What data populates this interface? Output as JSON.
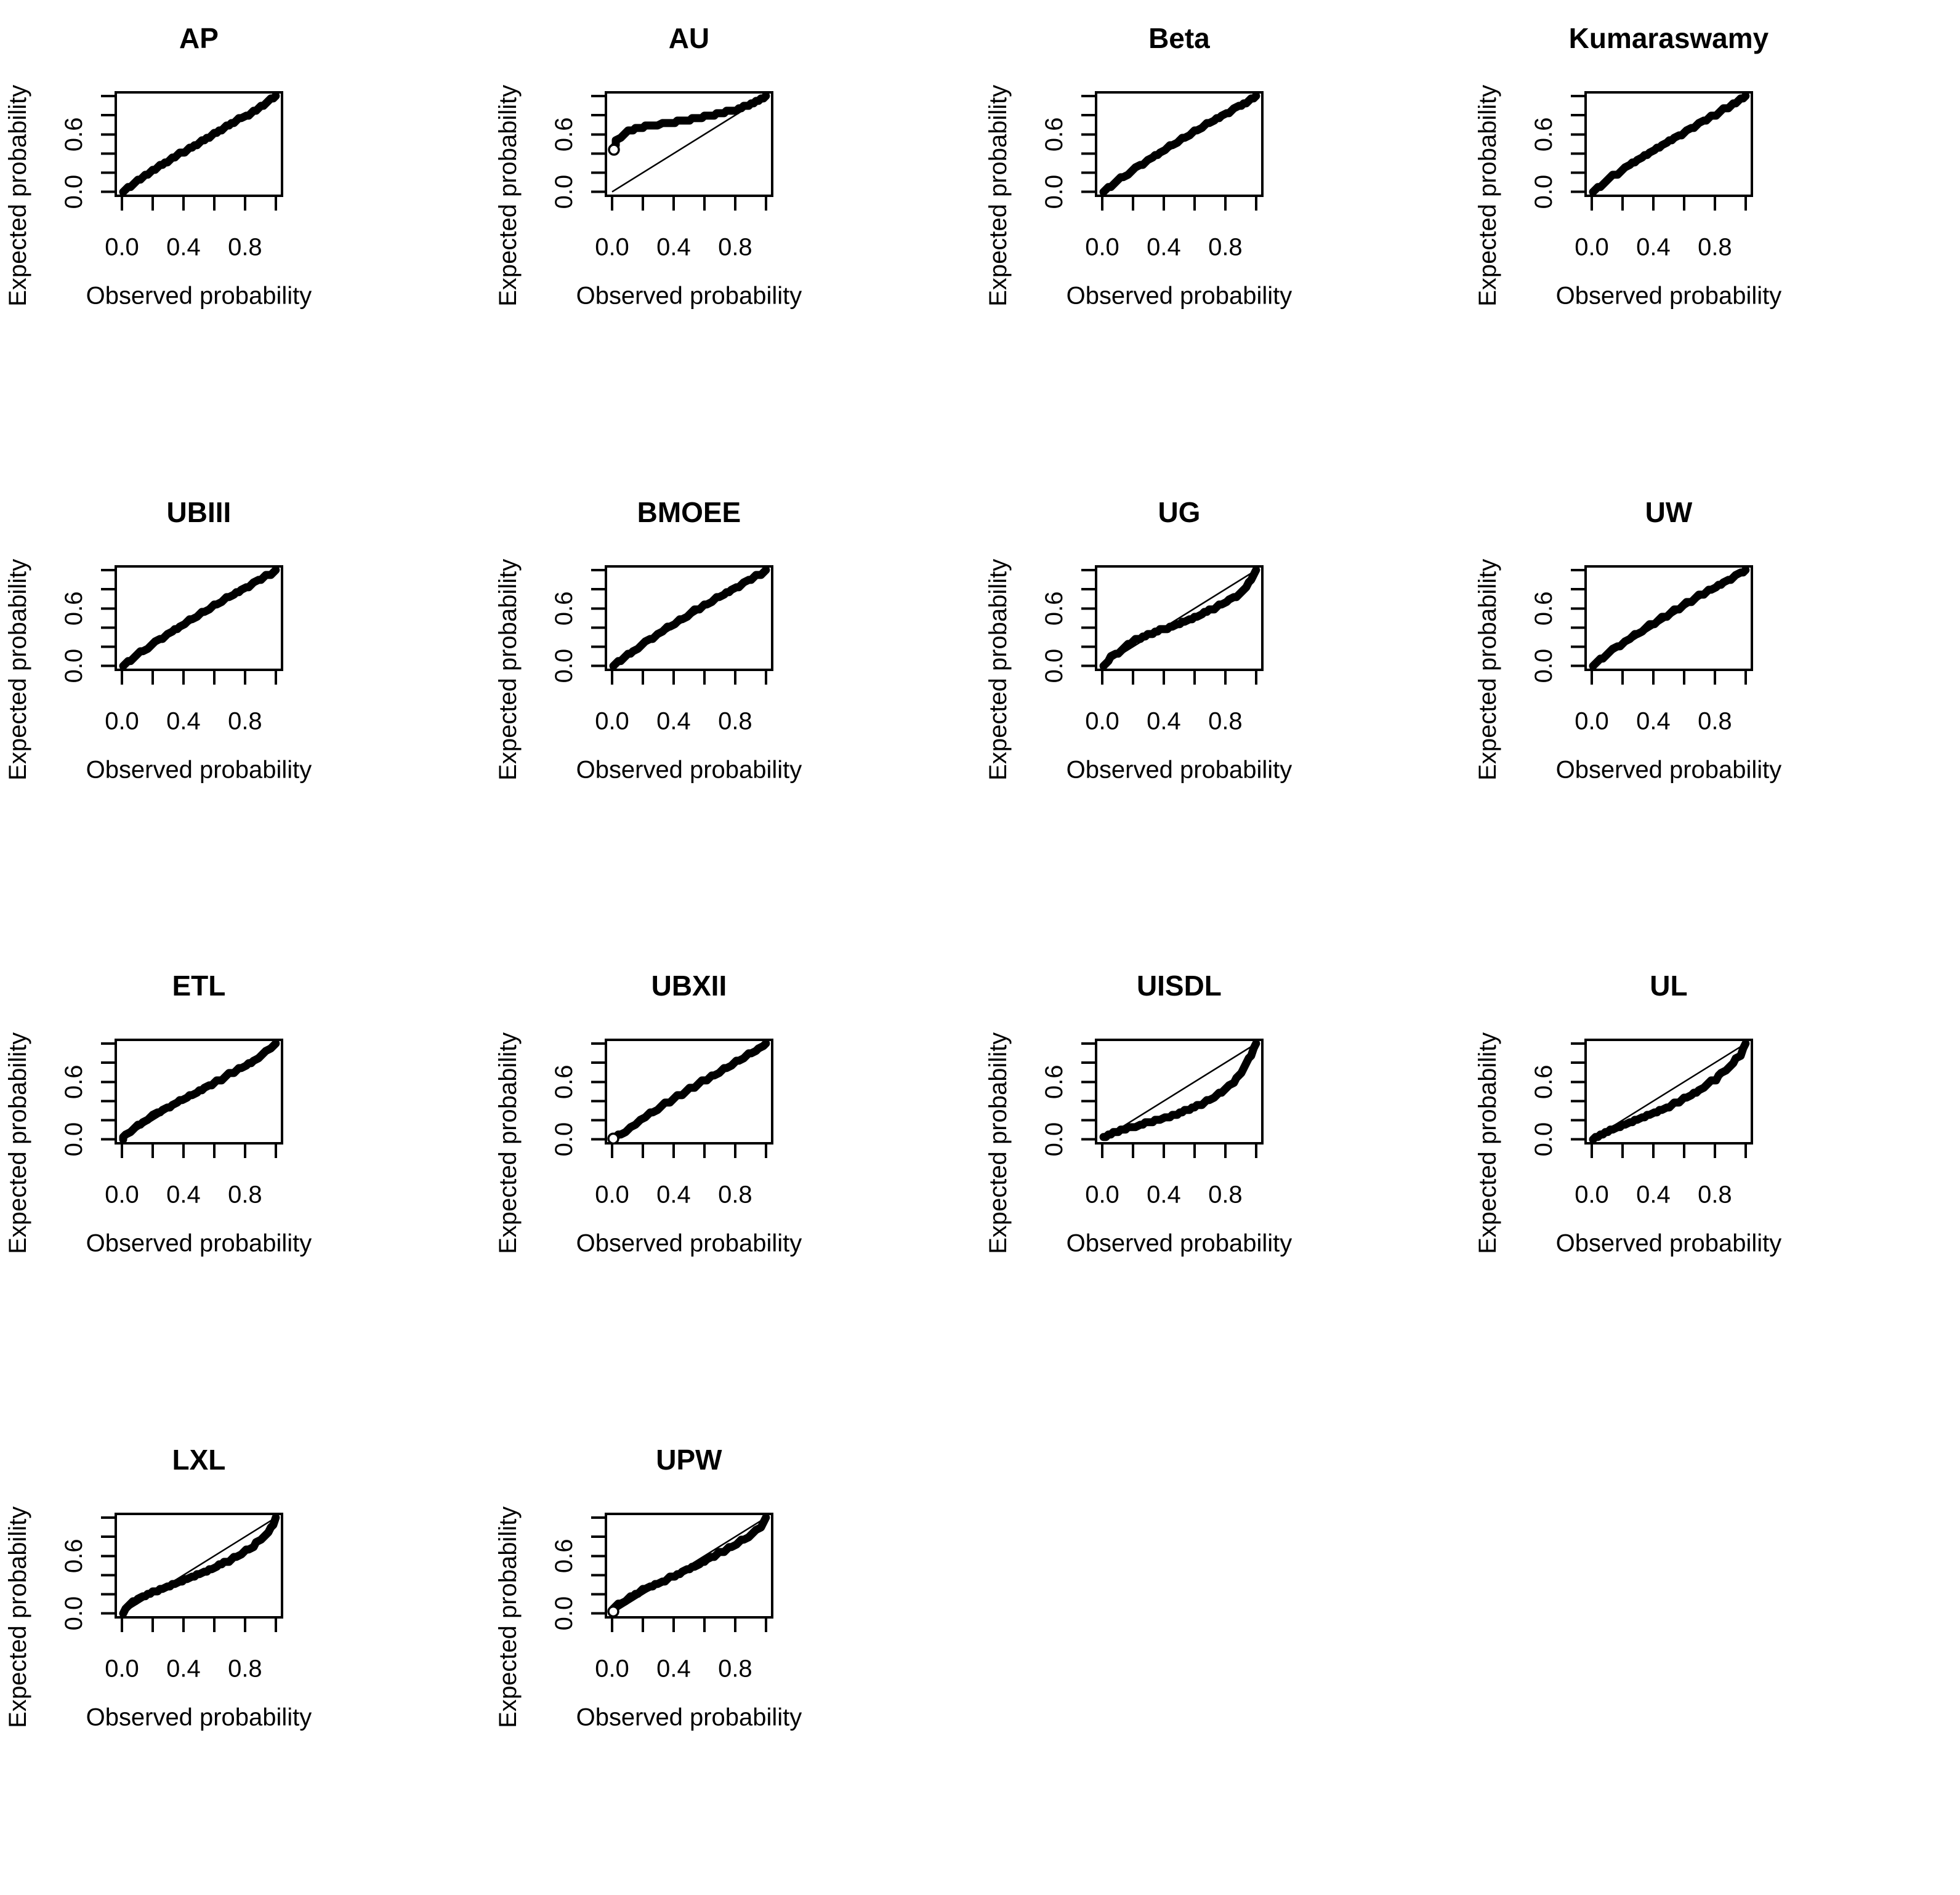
{
  "figure": {
    "kind": "pp-plot-grid",
    "description": "Grid of P-P plots comparing observed vs expected probabilities for fitted distributions",
    "rows": 4,
    "cols": 4,
    "num_plots": 14
  },
  "colors": {
    "foreground": "#000000",
    "background": "#ffffff"
  },
  "axes": {
    "xlabel": "Observed probability",
    "ylabel": "Expected probability",
    "xlim": [
      0,
      1
    ],
    "ylim": [
      0,
      1
    ],
    "x_tick_positions": [
      0,
      0.2,
      0.4,
      0.6,
      0.8,
      1.0
    ],
    "y_tick_positions": [
      0,
      0.2,
      0.4,
      0.6,
      0.8,
      1.0
    ],
    "x_tick_labels": [
      {
        "value": 0.0,
        "label": "0.0"
      },
      {
        "value": 0.4,
        "label": "0.4"
      },
      {
        "value": 0.8,
        "label": "0.8"
      }
    ],
    "y_tick_labels": [
      {
        "value": 0.0,
        "label": "0.0"
      },
      {
        "value": 0.6,
        "label": "0.6"
      }
    ]
  },
  "chart_data": [
    {
      "type": "scatter",
      "title": "AP",
      "reference_line": [
        [
          0,
          0
        ],
        [
          1,
          1
        ]
      ],
      "points": [
        [
          0,
          0.005
        ],
        [
          0.05,
          0.06
        ],
        [
          0.1,
          0.115
        ],
        [
          0.15,
          0.17
        ],
        [
          0.2,
          0.22
        ],
        [
          0.25,
          0.27
        ],
        [
          0.3,
          0.32
        ],
        [
          0.35,
          0.37
        ],
        [
          0.4,
          0.42
        ],
        [
          0.45,
          0.465
        ],
        [
          0.5,
          0.515
        ],
        [
          0.55,
          0.56
        ],
        [
          0.6,
          0.605
        ],
        [
          0.65,
          0.65
        ],
        [
          0.7,
          0.7
        ],
        [
          0.75,
          0.745
        ],
        [
          0.8,
          0.79
        ],
        [
          0.85,
          0.84
        ],
        [
          0.9,
          0.89
        ],
        [
          0.95,
          0.945
        ],
        [
          1,
          1
        ]
      ]
    },
    {
      "type": "scatter",
      "title": "AU",
      "reference_line": [
        [
          0,
          0
        ],
        [
          1,
          1
        ]
      ],
      "open_point": [
        0.012,
        0.44
      ],
      "points": [
        [
          0,
          0.43
        ],
        [
          0.01,
          0.46
        ],
        [
          0.02,
          0.5
        ],
        [
          0.03,
          0.53
        ],
        [
          0.05,
          0.57
        ],
        [
          0.07,
          0.6
        ],
        [
          0.1,
          0.63
        ],
        [
          0.15,
          0.655
        ],
        [
          0.2,
          0.675
        ],
        [
          0.3,
          0.705
        ],
        [
          0.4,
          0.73
        ],
        [
          0.5,
          0.755
        ],
        [
          0.6,
          0.785
        ],
        [
          0.7,
          0.82
        ],
        [
          0.8,
          0.86
        ],
        [
          0.9,
          0.915
        ],
        [
          0.95,
          0.95
        ],
        [
          1,
          1
        ]
      ]
    },
    {
      "type": "scatter",
      "title": "Beta",
      "reference_line": [
        [
          0,
          0
        ],
        [
          1,
          1
        ]
      ],
      "points": [
        [
          0,
          0.005
        ],
        [
          0.05,
          0.06
        ],
        [
          0.1,
          0.12
        ],
        [
          0.2,
          0.23
        ],
        [
          0.3,
          0.33
        ],
        [
          0.4,
          0.435
        ],
        [
          0.5,
          0.535
        ],
        [
          0.6,
          0.63
        ],
        [
          0.7,
          0.725
        ],
        [
          0.8,
          0.815
        ],
        [
          0.9,
          0.905
        ],
        [
          0.95,
          0.95
        ],
        [
          1,
          1
        ]
      ]
    },
    {
      "type": "scatter",
      "title": "Kumaraswamy",
      "reference_line": [
        [
          0,
          0
        ],
        [
          1,
          1
        ]
      ],
      "points": [
        [
          0,
          0.005
        ],
        [
          0.05,
          0.06
        ],
        [
          0.1,
          0.125
        ],
        [
          0.2,
          0.235
        ],
        [
          0.3,
          0.34
        ],
        [
          0.4,
          0.435
        ],
        [
          0.5,
          0.53
        ],
        [
          0.6,
          0.62
        ],
        [
          0.7,
          0.715
        ],
        [
          0.8,
          0.805
        ],
        [
          0.9,
          0.9
        ],
        [
          0.95,
          0.95
        ],
        [
          1,
          1
        ]
      ]
    },
    {
      "type": "scatter",
      "title": "UBIII",
      "reference_line": [
        [
          0,
          0
        ],
        [
          1,
          1
        ]
      ],
      "points": [
        [
          0,
          0.005
        ],
        [
          0.05,
          0.06
        ],
        [
          0.1,
          0.12
        ],
        [
          0.2,
          0.23
        ],
        [
          0.3,
          0.335
        ],
        [
          0.4,
          0.435
        ],
        [
          0.5,
          0.535
        ],
        [
          0.6,
          0.63
        ],
        [
          0.7,
          0.725
        ],
        [
          0.8,
          0.815
        ],
        [
          0.9,
          0.905
        ],
        [
          1,
          1
        ]
      ]
    },
    {
      "type": "scatter",
      "title": "BMOEE",
      "reference_line": [
        [
          0,
          0
        ],
        [
          1,
          1
        ]
      ],
      "points": [
        [
          0,
          0.005
        ],
        [
          0.05,
          0.055
        ],
        [
          0.1,
          0.115
        ],
        [
          0.2,
          0.225
        ],
        [
          0.3,
          0.335
        ],
        [
          0.4,
          0.44
        ],
        [
          0.5,
          0.54
        ],
        [
          0.6,
          0.635
        ],
        [
          0.7,
          0.725
        ],
        [
          0.8,
          0.815
        ],
        [
          0.9,
          0.905
        ],
        [
          1,
          1
        ]
      ]
    },
    {
      "type": "scatter",
      "title": "UG",
      "reference_line": [
        [
          0,
          0
        ],
        [
          1,
          1
        ]
      ],
      "points": [
        [
          0,
          0.01
        ],
        [
          0.04,
          0.06
        ],
        [
          0.08,
          0.12
        ],
        [
          0.13,
          0.18
        ],
        [
          0.18,
          0.24
        ],
        [
          0.22,
          0.275
        ],
        [
          0.3,
          0.325
        ],
        [
          0.4,
          0.385
        ],
        [
          0.5,
          0.445
        ],
        [
          0.6,
          0.51
        ],
        [
          0.7,
          0.58
        ],
        [
          0.78,
          0.645
        ],
        [
          0.85,
          0.71
        ],
        [
          0.9,
          0.77
        ],
        [
          0.94,
          0.83
        ],
        [
          0.97,
          0.9
        ],
        [
          1,
          1
        ]
      ]
    },
    {
      "type": "scatter",
      "title": "UW",
      "reference_line": [
        [
          0,
          0
        ],
        [
          1,
          1
        ]
      ],
      "points": [
        [
          0,
          0.005
        ],
        [
          0.05,
          0.065
        ],
        [
          0.1,
          0.125
        ],
        [
          0.2,
          0.24
        ],
        [
          0.3,
          0.345
        ],
        [
          0.4,
          0.445
        ],
        [
          0.5,
          0.545
        ],
        [
          0.6,
          0.64
        ],
        [
          0.7,
          0.735
        ],
        [
          0.8,
          0.825
        ],
        [
          0.9,
          0.91
        ],
        [
          1,
          1
        ]
      ]
    },
    {
      "type": "scatter",
      "title": "ETL",
      "reference_line": [
        [
          0,
          0
        ],
        [
          1,
          1
        ]
      ],
      "points": [
        [
          0,
          0.01
        ],
        [
          0.03,
          0.05
        ],
        [
          0.07,
          0.105
        ],
        [
          0.12,
          0.165
        ],
        [
          0.18,
          0.23
        ],
        [
          0.25,
          0.29
        ],
        [
          0.33,
          0.36
        ],
        [
          0.42,
          0.44
        ],
        [
          0.52,
          0.525
        ],
        [
          0.62,
          0.61
        ],
        [
          0.72,
          0.7
        ],
        [
          0.82,
          0.785
        ],
        [
          0.9,
          0.87
        ],
        [
          0.96,
          0.94
        ],
        [
          1,
          1
        ]
      ]
    },
    {
      "type": "scatter",
      "title": "UBXII",
      "reference_line": [
        [
          0,
          0
        ],
        [
          1,
          1
        ]
      ],
      "open_point": [
        0.008,
        0.008
      ],
      "points": [
        [
          0,
          0.005
        ],
        [
          0.04,
          0.04
        ],
        [
          0.08,
          0.085
        ],
        [
          0.15,
          0.165
        ],
        [
          0.25,
          0.27
        ],
        [
          0.35,
          0.375
        ],
        [
          0.45,
          0.47
        ],
        [
          0.55,
          0.565
        ],
        [
          0.65,
          0.66
        ],
        [
          0.75,
          0.755
        ],
        [
          0.85,
          0.85
        ],
        [
          0.93,
          0.925
        ],
        [
          1,
          1
        ]
      ]
    },
    {
      "type": "scatter",
      "title": "UISDL",
      "reference_line": [
        [
          0,
          0
        ],
        [
          1,
          1
        ]
      ],
      "points": [
        [
          0,
          0.02
        ],
        [
          0.05,
          0.055
        ],
        [
          0.1,
          0.085
        ],
        [
          0.15,
          0.11
        ],
        [
          0.2,
          0.13
        ],
        [
          0.3,
          0.175
        ],
        [
          0.4,
          0.22
        ],
        [
          0.5,
          0.275
        ],
        [
          0.6,
          0.335
        ],
        [
          0.7,
          0.415
        ],
        [
          0.78,
          0.5
        ],
        [
          0.85,
          0.6
        ],
        [
          0.9,
          0.7
        ],
        [
          0.94,
          0.79
        ],
        [
          0.97,
          0.88
        ],
        [
          1,
          1
        ]
      ]
    },
    {
      "type": "scatter",
      "title": "UL",
      "reference_line": [
        [
          0,
          0
        ],
        [
          1,
          1
        ]
      ],
      "points": [
        [
          0,
          0.005
        ],
        [
          0.05,
          0.045
        ],
        [
          0.1,
          0.085
        ],
        [
          0.2,
          0.15
        ],
        [
          0.3,
          0.215
        ],
        [
          0.4,
          0.275
        ],
        [
          0.5,
          0.345
        ],
        [
          0.6,
          0.425
        ],
        [
          0.7,
          0.515
        ],
        [
          0.8,
          0.625
        ],
        [
          0.87,
          0.72
        ],
        [
          0.92,
          0.8
        ],
        [
          0.96,
          0.88
        ],
        [
          1,
          1
        ]
      ]
    },
    {
      "type": "scatter",
      "title": "LXL",
      "reference_line": [
        [
          0,
          0
        ],
        [
          1,
          1
        ]
      ],
      "points": [
        [
          0,
          0.005
        ],
        [
          0.02,
          0.045
        ],
        [
          0.05,
          0.095
        ],
        [
          0.09,
          0.14
        ],
        [
          0.13,
          0.175
        ],
        [
          0.18,
          0.21
        ],
        [
          0.25,
          0.255
        ],
        [
          0.35,
          0.315
        ],
        [
          0.45,
          0.375
        ],
        [
          0.55,
          0.445
        ],
        [
          0.65,
          0.515
        ],
        [
          0.75,
          0.595
        ],
        [
          0.83,
          0.675
        ],
        [
          0.9,
          0.765
        ],
        [
          0.95,
          0.855
        ],
        [
          0.98,
          0.92
        ],
        [
          1,
          1
        ]
      ]
    },
    {
      "type": "scatter",
      "title": "UPW",
      "reference_line": [
        [
          0,
          0
        ],
        [
          1,
          1
        ]
      ],
      "open_point": [
        0.008,
        0.02
      ],
      "points": [
        [
          0,
          0.02
        ],
        [
          0.03,
          0.07
        ],
        [
          0.06,
          0.11
        ],
        [
          0.1,
          0.155
        ],
        [
          0.15,
          0.2
        ],
        [
          0.2,
          0.245
        ],
        [
          0.3,
          0.315
        ],
        [
          0.4,
          0.39
        ],
        [
          0.5,
          0.465
        ],
        [
          0.6,
          0.545
        ],
        [
          0.7,
          0.63
        ],
        [
          0.8,
          0.72
        ],
        [
          0.88,
          0.8
        ],
        [
          0.94,
          0.875
        ],
        [
          0.98,
          0.94
        ],
        [
          1,
          1
        ]
      ]
    }
  ]
}
